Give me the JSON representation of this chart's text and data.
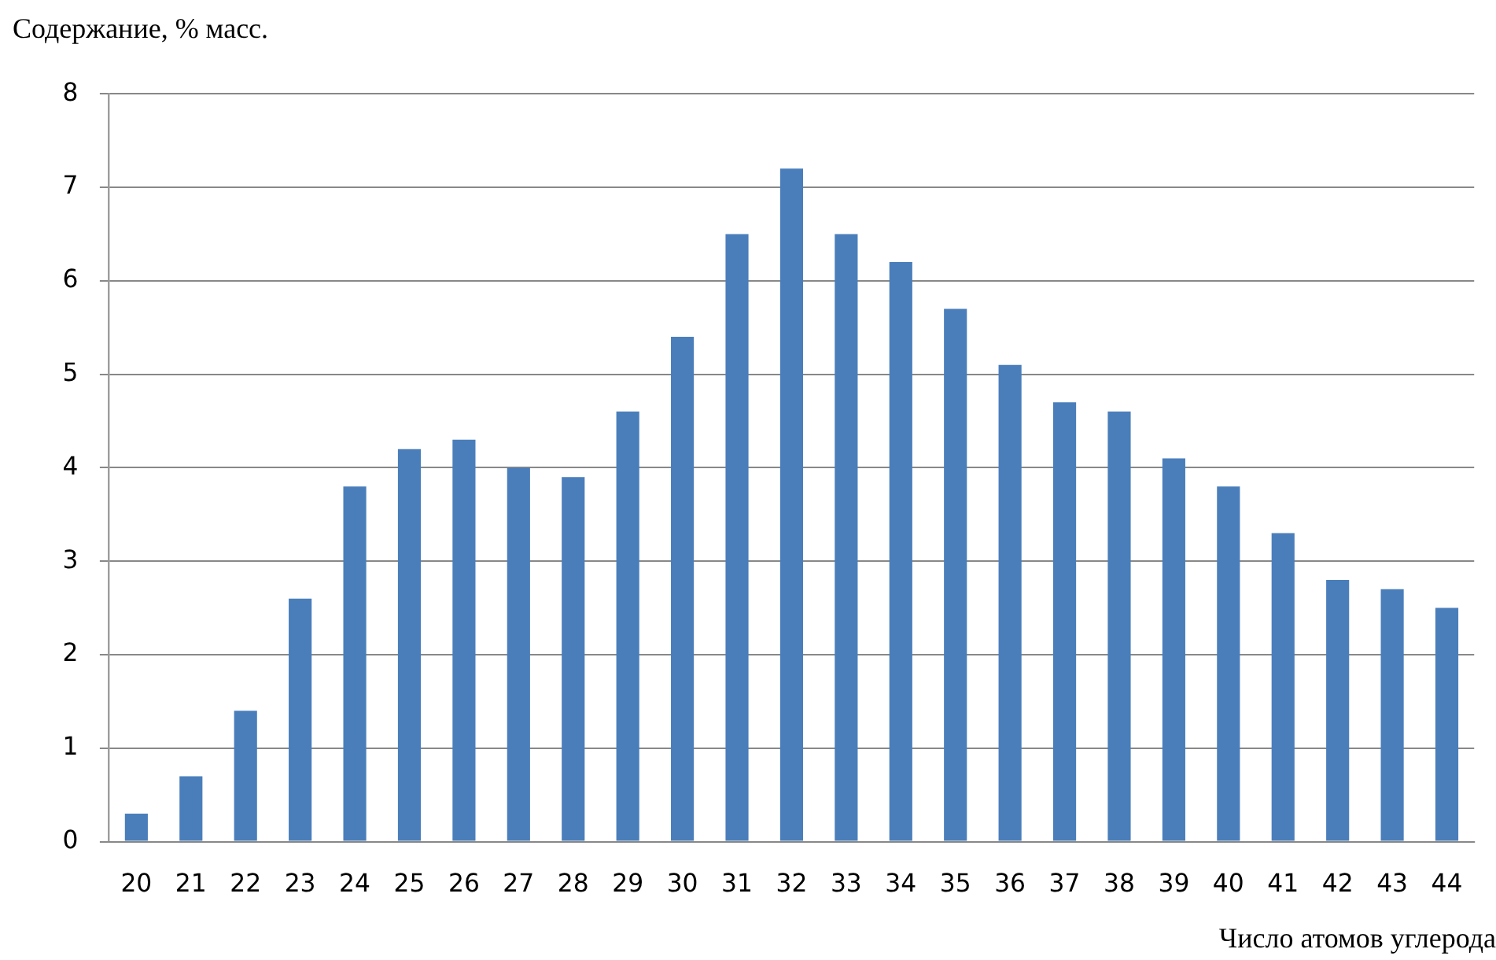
{
  "chart_data": {
    "type": "bar",
    "ylabel": "Содержание, % масс.",
    "xlabel": "Число атомов углерода",
    "categories": [
      "20",
      "21",
      "22",
      "23",
      "24",
      "25",
      "26",
      "27",
      "28",
      "29",
      "30",
      "31",
      "32",
      "33",
      "34",
      "35",
      "36",
      "37",
      "38",
      "39",
      "40",
      "41",
      "42",
      "43",
      "44"
    ],
    "values": [
      0.3,
      0.7,
      1.4,
      2.6,
      3.8,
      4.2,
      4.3,
      4.0,
      3.9,
      4.6,
      5.4,
      6.5,
      7.2,
      6.5,
      6.2,
      5.7,
      5.1,
      4.7,
      4.6,
      4.1,
      3.8,
      3.3,
      2.8,
      2.7,
      2.5
    ],
    "color": "#4a7ebb",
    "ylim": [
      0,
      8
    ],
    "yticks": [
      0,
      1,
      2,
      3,
      4,
      5,
      6,
      7,
      8
    ],
    "grid": "y"
  }
}
